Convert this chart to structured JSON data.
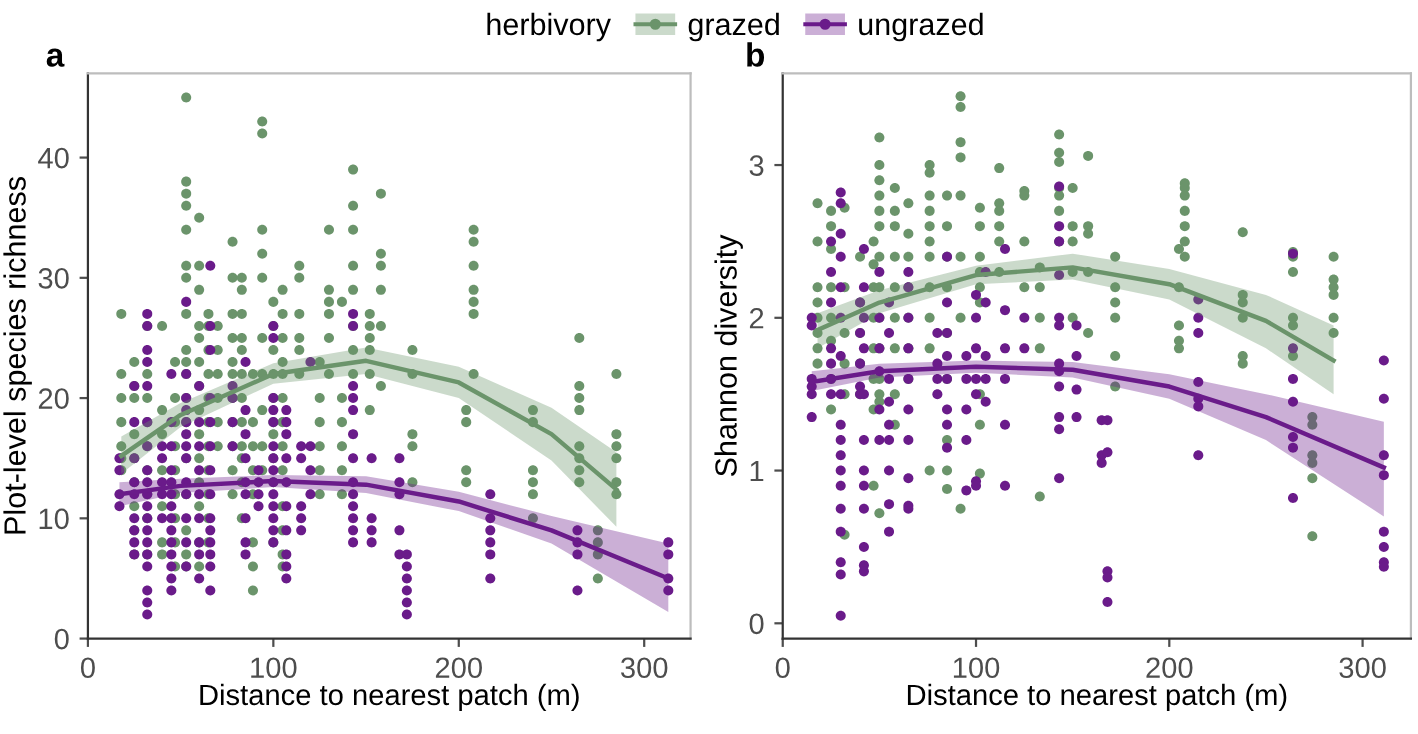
{
  "chart_data": [
    {
      "type": "scatter",
      "title": "a",
      "xlabel": "Distance to nearest patch (m)",
      "ylabel": "Plot-level species richness",
      "legend_title": "herbivory",
      "legend": "top",
      "grid": false,
      "xlim": [
        0,
        325
      ],
      "xticks": [
        0,
        100,
        200,
        300
      ],
      "ylim": [
        0,
        47
      ],
      "yticks": [
        0,
        10,
        20,
        30,
        40
      ],
      "series": [
        {
          "name": "grazed",
          "color": "#6b946b",
          "marker": "circle",
          "x": [
            18,
            18,
            18,
            18,
            18,
            18,
            18,
            25,
            25,
            25,
            25,
            25,
            25,
            25,
            25,
            25,
            32,
            32,
            32,
            32,
            32,
            32,
            32,
            32,
            32,
            40,
            40,
            40,
            40,
            40,
            40,
            40,
            47,
            47,
            47,
            47,
            47,
            47,
            47,
            47,
            47,
            53,
            53,
            53,
            53,
            53,
            53,
            53,
            53,
            53,
            53,
            53,
            53,
            53,
            53,
            53,
            53,
            53,
            53,
            60,
            60,
            60,
            60,
            60,
            60,
            60,
            60,
            60,
            60,
            60,
            60,
            60,
            60,
            65,
            65,
            65,
            65,
            65,
            65,
            65,
            65,
            65,
            65,
            65,
            70,
            70,
            70,
            70,
            70,
            70,
            78,
            78,
            78,
            78,
            78,
            78,
            78,
            78,
            78,
            78,
            78,
            83,
            83,
            83,
            83,
            83,
            83,
            83,
            83,
            83,
            83,
            83,
            83,
            89,
            89,
            89,
            89,
            89,
            89,
            89,
            89,
            94,
            94,
            94,
            94,
            94,
            94,
            94,
            94,
            94,
            94,
            100,
            100,
            100,
            100,
            100,
            100,
            100,
            100,
            100,
            100,
            105,
            105,
            105,
            105,
            105,
            105,
            105,
            105,
            105,
            105,
            105,
            105,
            105,
            114,
            114,
            114,
            114,
            114,
            114,
            125,
            125,
            125,
            125,
            125,
            125,
            130,
            130,
            130,
            130,
            130,
            130,
            137,
            137,
            137,
            137,
            137,
            137,
            143,
            143,
            143,
            143,
            143,
            143,
            143,
            143,
            152,
            152,
            152,
            152,
            152,
            152,
            158,
            158,
            158,
            158,
            158,
            158,
            175,
            175,
            175,
            175,
            175,
            204,
            204,
            204,
            204,
            208,
            208,
            208,
            208,
            208,
            208,
            208,
            240,
            240,
            240,
            240,
            240,
            240,
            265,
            265,
            265,
            265,
            265,
            265,
            265,
            265,
            275,
            275,
            275,
            275,
            285,
            285,
            285,
            285,
            285,
            285
          ],
          "values": [
            27,
            22,
            20,
            18,
            16,
            15,
            14,
            23,
            21,
            20,
            17,
            15,
            13,
            11,
            9,
            7,
            26,
            22,
            20,
            18,
            16,
            14,
            12,
            10,
            7,
            26,
            19,
            17,
            14,
            11,
            8,
            7,
            23,
            20,
            18,
            16,
            14,
            12,
            10,
            8,
            6,
            45,
            38,
            37,
            36,
            34,
            31,
            30,
            27,
            24,
            23,
            22,
            20,
            18,
            15,
            12,
            9,
            7,
            6,
            35,
            31,
            29,
            26,
            25,
            23,
            21,
            19,
            17,
            15,
            13,
            11,
            8,
            6,
            27,
            26,
            24,
            22,
            20,
            18,
            16,
            14,
            12,
            10,
            8,
            26,
            24,
            22,
            20,
            18,
            16,
            33,
            30,
            27,
            25,
            23,
            22,
            20,
            18,
            16,
            14,
            12,
            30,
            29,
            27,
            25,
            24,
            22,
            20,
            18,
            16,
            15,
            13,
            10,
            22,
            18,
            16,
            14,
            12,
            8,
            6,
            4,
            43,
            42,
            34,
            32,
            30,
            25,
            22,
            19,
            16,
            14,
            28,
            26,
            24,
            22,
            20,
            18,
            17,
            15,
            13,
            8,
            29,
            27,
            25,
            23,
            22,
            20,
            18,
            16,
            14,
            11,
            9,
            7,
            6,
            31,
            30,
            27,
            25,
            24,
            22,
            23,
            20,
            18,
            16,
            14,
            12,
            34,
            29,
            28,
            27,
            25,
            22,
            28,
            20,
            18,
            16,
            14,
            12,
            39,
            36,
            34,
            31,
            29,
            26,
            24,
            22,
            27,
            26,
            25,
            24,
            22,
            19,
            37,
            32,
            31,
            29,
            26,
            21,
            24,
            22,
            17,
            16,
            13,
            19,
            18,
            14,
            13,
            34,
            33,
            31,
            29,
            28,
            27,
            22,
            19,
            18,
            14,
            13,
            12,
            10,
            25,
            21,
            20,
            19,
            16,
            15,
            14,
            13,
            9,
            8,
            7,
            5,
            22,
            17,
            16,
            15,
            13,
            12
          ]
        },
        {
          "name": "ungrazed",
          "color": "#6a1b8a",
          "marker": "circle",
          "x": [
            17,
            17,
            17,
            17,
            25,
            25,
            25,
            25,
            25,
            25,
            25,
            25,
            25,
            32,
            32,
            32,
            32,
            32,
            32,
            32,
            32,
            32,
            32,
            32,
            32,
            32,
            32,
            32,
            32,
            32,
            32,
            32,
            40,
            40,
            40,
            40,
            40,
            45,
            45,
            45,
            45,
            45,
            45,
            45,
            45,
            45,
            45,
            45,
            45,
            45,
            45,
            53,
            53,
            53,
            53,
            53,
            53,
            53,
            53,
            53,
            53,
            53,
            53,
            53,
            60,
            60,
            60,
            60,
            60,
            60,
            60,
            60,
            60,
            66,
            66,
            66,
            66,
            66,
            66,
            66,
            66,
            66,
            66,
            66,
            66,
            66,
            66,
            78,
            78,
            78,
            78,
            85,
            85,
            85,
            85,
            85,
            85,
            85,
            85,
            85,
            92,
            92,
            92,
            92,
            100,
            100,
            100,
            100,
            100,
            100,
            100,
            100,
            100,
            100,
            100,
            100,
            100,
            100,
            107,
            107,
            107,
            107,
            107,
            107,
            107,
            107,
            107,
            107,
            115,
            115,
            115,
            115,
            115,
            120,
            120,
            120,
            120,
            143,
            143,
            143,
            143,
            143,
            143,
            143,
            143,
            143,
            143,
            143,
            143,
            143,
            153,
            153,
            153,
            153,
            168,
            168,
            168,
            168,
            168,
            172,
            172,
            172,
            172,
            172,
            172,
            217,
            217,
            217,
            217,
            217,
            217,
            264,
            264,
            264,
            264,
            313,
            313,
            313,
            313
          ],
          "values": [
            15,
            14,
            12,
            11,
            21,
            18,
            15,
            13,
            12,
            10,
            9,
            8,
            7,
            27,
            26,
            24,
            23,
            21,
            18,
            16,
            14,
            13,
            12,
            11,
            10,
            9,
            8,
            7,
            6,
            4,
            3,
            2,
            16,
            15,
            13,
            12,
            10,
            22,
            18,
            16,
            14,
            13,
            12,
            11,
            10,
            9,
            8,
            7,
            6,
            5,
            4,
            28,
            22,
            20,
            19,
            18,
            17,
            16,
            15,
            13,
            12,
            10,
            8,
            6,
            21,
            18,
            16,
            14,
            12,
            10,
            8,
            7,
            5,
            31,
            26,
            24,
            20,
            18,
            16,
            14,
            12,
            10,
            9,
            8,
            7,
            6,
            4,
            21,
            20,
            18,
            16,
            23,
            19,
            17,
            15,
            13,
            12,
            10,
            8,
            7,
            14,
            13,
            12,
            11,
            26,
            25,
            20,
            19,
            18,
            16,
            15,
            14,
            13,
            12,
            11,
            10,
            9,
            8,
            19,
            18,
            17,
            15,
            13,
            11,
            9,
            7,
            6,
            5,
            16,
            15,
            11,
            10,
            9,
            23,
            16,
            14,
            12,
            27,
            26,
            21,
            20,
            19,
            17,
            15,
            13,
            12,
            11,
            10,
            9,
            8,
            15,
            10,
            9,
            8,
            15,
            13,
            12,
            9,
            7,
            7,
            6,
            5,
            4,
            3,
            2,
            12,
            10,
            9,
            8,
            7,
            5,
            9,
            8,
            7,
            4,
            8,
            7,
            5,
            4
          ]
        },
        {
          "type": "line",
          "color": "#6b946b",
          "x": [
            18,
            50,
            100,
            150,
            200,
            250,
            285
          ],
          "values": [
            15.2,
            18.6,
            22,
            23.1,
            21.3,
            17,
            12.4
          ],
          "lower": [
            13.7,
            17.6,
            21.2,
            22,
            20,
            14.8,
            9.3
          ],
          "upper": [
            16.8,
            19.6,
            22.9,
            24.2,
            22.6,
            19.2,
            15.5
          ]
        },
        {
          "type": "line",
          "color": "#6a1b8a",
          "x": [
            17,
            50,
            100,
            150,
            200,
            250,
            313
          ],
          "values": [
            12,
            12.7,
            13.1,
            12.8,
            11.4,
            9,
            5
          ],
          "lower": [
            11,
            12.1,
            12.6,
            12.1,
            10.6,
            7.9,
            2.2
          ],
          "upper": [
            13,
            13.3,
            13.6,
            13.5,
            12.2,
            10.2,
            7.9
          ]
        }
      ]
    },
    {
      "type": "scatter",
      "title": "b",
      "xlabel": "Distance to nearest patch (m)",
      "ylabel": "Shannon diversity",
      "grid": false,
      "xlim": [
        0,
        325
      ],
      "xticks": [
        0,
        100,
        200,
        300
      ],
      "ylim": [
        -0.1,
        3.6
      ],
      "yticks": [
        0,
        1,
        2,
        3
      ],
      "series": [
        {
          "color": "#6b946b",
          "marker": "circle",
          "x": [
            18,
            18,
            18,
            18,
            18,
            18,
            18,
            18,
            25,
            25,
            25,
            25,
            25,
            25,
            25,
            25,
            32,
            32,
            32,
            32,
            32,
            32,
            40,
            40,
            40,
            40,
            40,
            47,
            47,
            47,
            47,
            47,
            47,
            47,
            47,
            50,
            50,
            50,
            50,
            50,
            50,
            50,
            50,
            50,
            50,
            50,
            50,
            50,
            50,
            58,
            58,
            58,
            58,
            58,
            58,
            58,
            58,
            58,
            65,
            65,
            65,
            65,
            65,
            65,
            65,
            76,
            76,
            76,
            76,
            76,
            76,
            76,
            76,
            76,
            76,
            76,
            85,
            85,
            85,
            85,
            85,
            85,
            85,
            85,
            85,
            92,
            92,
            92,
            92,
            92,
            92,
            92,
            92,
            102,
            102,
            102,
            102,
            102,
            102,
            102,
            102,
            102,
            112,
            112,
            112,
            112,
            112,
            112,
            125,
            125,
            125,
            125,
            133,
            133,
            133,
            133,
            133,
            143,
            143,
            143,
            143,
            143,
            143,
            143,
            150,
            150,
            150,
            150,
            150,
            158,
            158,
            158,
            158,
            158,
            172,
            172,
            172,
            172,
            172,
            172,
            205,
            205,
            205,
            205,
            205,
            208,
            208,
            208,
            208,
            208,
            208,
            208,
            238,
            238,
            238,
            238,
            238,
            238,
            264,
            264,
            264,
            264,
            264,
            264,
            274,
            274,
            274,
            274,
            274,
            274,
            285,
            285,
            285,
            285,
            285,
            285
          ],
          "values": [
            2.75,
            2.5,
            2.2,
            2.1,
            2.0,
            1.9,
            1.8,
            1.7,
            2.7,
            2.6,
            2.45,
            2.2,
            2.0,
            1.85,
            1.6,
            1.4,
            2.72,
            2.2,
            1.9,
            1.7,
            1.5,
            0.58,
            2.4,
            2.1,
            1.9,
            1.7,
            1.5,
            2.5,
            2.35,
            2.2,
            2.0,
            1.8,
            1.6,
            1.4,
            0.9,
            3.18,
            3.0,
            2.9,
            2.8,
            2.7,
            2.6,
            2.4,
            2.2,
            2.0,
            1.8,
            1.6,
            1.5,
            1.45,
            0.72,
            2.85,
            2.7,
            2.6,
            2.4,
            2.2,
            2.0,
            1.8,
            1.5,
            1.3,
            2.75,
            2.55,
            2.4,
            2.2,
            2.0,
            1.8,
            1.6,
            3.0,
            2.95,
            2.8,
            2.7,
            2.6,
            2.5,
            2.4,
            2.2,
            2.0,
            1.8,
            1.0,
            2.8,
            2.6,
            2.4,
            2.2,
            1.9,
            1.6,
            1.2,
            1.0,
            0.88,
            3.45,
            3.38,
            3.15,
            3.05,
            2.8,
            2.4,
            2.0,
            0.75,
            2.72,
            2.6,
            2.4,
            2.3,
            2.2,
            2.1,
            1.5,
            1.3,
            0.98,
            2.98,
            2.75,
            2.7,
            2.6,
            2.5,
            2.3,
            2.83,
            2.8,
            2.5,
            2.2,
            2.33,
            2.2,
            2.0,
            1.8,
            0.83,
            3.2,
            3.08,
            3.02,
            2.85,
            2.8,
            2.7,
            2.5,
            2.85,
            2.6,
            2.5,
            2.3,
            2.0,
            3.06,
            2.6,
            2.55,
            2.3,
            1.9,
            2.4,
            2.2,
            2.1,
            2.0,
            1.75,
            1.55,
            2.45,
            2.2,
            1.95,
            1.85,
            1.8,
            2.88,
            2.85,
            2.8,
            2.7,
            2.6,
            2.5,
            2.4,
            2.56,
            2.15,
            2.1,
            2.0,
            1.75,
            1.7,
            2.43,
            2.4,
            2.3,
            2.0,
            1.95,
            1.75,
            1.35,
            1.3,
            1.1,
            1.05,
            0.95,
            0.57,
            2.4,
            2.25,
            2.2,
            2.15,
            2.0,
            1.9
          ]
        },
        {
          "color": "#6a1b8a",
          "marker": "circle",
          "x": [
            15,
            15,
            15,
            15,
            15,
            15,
            25,
            25,
            25,
            25,
            25,
            25,
            25,
            30,
            30,
            30,
            30,
            30,
            30,
            30,
            30,
            30,
            30,
            30,
            30,
            30,
            30,
            30,
            30,
            30,
            30,
            40,
            40,
            40,
            40,
            40,
            42,
            42,
            42,
            42,
            42,
            42,
            42,
            42,
            42,
            42,
            42,
            42,
            50,
            50,
            50,
            50,
            50,
            50,
            55,
            55,
            55,
            55,
            55,
            55,
            55,
            55,
            55,
            65,
            65,
            65,
            65,
            65,
            65,
            65,
            65,
            65,
            65,
            80,
            80,
            80,
            80,
            85,
            85,
            85,
            85,
            85,
            85,
            85,
            85,
            95,
            95,
            95,
            95,
            95,
            100,
            100,
            100,
            100,
            100,
            100,
            100,
            105,
            105,
            105,
            105,
            105,
            115,
            115,
            115,
            115,
            115,
            115,
            125,
            125,
            143,
            143,
            143,
            143,
            143,
            143,
            143,
            143,
            143,
            143,
            143,
            143,
            152,
            152,
            152,
            152,
            165,
            165,
            165,
            168,
            168,
            168,
            168,
            168,
            215,
            215,
            215,
            215,
            215,
            215,
            215,
            264,
            264,
            264,
            264,
            264,
            264,
            264,
            311,
            311,
            311,
            311,
            311,
            311,
            311,
            311
          ],
          "values": [
            2.0,
            1.95,
            1.6,
            1.55,
            1.5,
            1.35,
            2.5,
            2.3,
            2.1,
            1.8,
            1.7,
            1.6,
            1.5,
            2.82,
            2.75,
            2.55,
            2.4,
            2.2,
            2.0,
            1.75,
            1.5,
            1.3,
            1.2,
            1.1,
            1.0,
            0.9,
            0.75,
            0.6,
            0.4,
            0.32,
            0.05,
            2.1,
            1.9,
            1.7,
            1.55,
            1.5,
            2.45,
            2.2,
            2.0,
            1.8,
            1.5,
            1.2,
            1.0,
            0.9,
            0.75,
            0.5,
            0.38,
            0.34,
            2.3,
            2.0,
            1.8,
            1.65,
            1.4,
            1.2,
            2.1,
            1.9,
            1.6,
            1.45,
            1.3,
            1.2,
            1.0,
            0.78,
            0.6,
            2.3,
            2.2,
            2.0,
            1.8,
            1.6,
            1.4,
            1.2,
            0.95,
            0.77,
            0.75,
            1.9,
            1.7,
            1.6,
            1.5,
            2.4,
            2.1,
            1.9,
            1.75,
            1.6,
            1.4,
            1.3,
            1.15,
            1.75,
            1.6,
            1.4,
            1.2,
            0.87,
            2.15,
            2.0,
            1.8,
            1.6,
            1.5,
            0.93,
            0.9,
            2.3,
            2.1,
            1.75,
            1.6,
            1.45,
            2.45,
            2.05,
            1.8,
            1.6,
            1.3,
            0.9,
            2.0,
            1.8,
            2.86,
            2.6,
            2.5,
            2.28,
            2.0,
            1.95,
            1.7,
            1.65,
            1.55,
            1.35,
            1.27,
            0.95,
            1.95,
            1.75,
            1.53,
            1.35,
            1.33,
            1.1,
            1.05,
            1.33,
            1.12,
            0.34,
            0.3,
            0.14,
            2.12,
            2.0,
            1.9,
            1.58,
            1.47,
            1.42,
            1.1,
            2.42,
            1.8,
            1.6,
            1.45,
            1.22,
            1.15,
            0.82,
            1.72,
            1.47,
            1.1,
            0.97,
            0.6,
            0.5,
            0.4,
            0.37
          ]
        },
        {
          "type": "line",
          "color": "#6b946b",
          "x": [
            18,
            50,
            100,
            150,
            200,
            250,
            285
          ],
          "values": [
            1.92,
            2.1,
            2.28,
            2.33,
            2.22,
            1.98,
            1.72
          ],
          "lower": [
            1.8,
            2.03,
            2.22,
            2.25,
            2.12,
            1.8,
            1.5
          ],
          "upper": [
            2.03,
            2.18,
            2.34,
            2.42,
            2.32,
            2.15,
            1.95
          ]
        },
        {
          "type": "line",
          "color": "#6a1b8a",
          "x": [
            15,
            50,
            100,
            150,
            200,
            250,
            311
          ],
          "values": [
            1.58,
            1.65,
            1.68,
            1.66,
            1.55,
            1.35,
            1.02
          ],
          "lower": [
            1.52,
            1.61,
            1.64,
            1.61,
            1.47,
            1.2,
            0.7
          ],
          "upper": [
            1.65,
            1.7,
            1.72,
            1.71,
            1.63,
            1.5,
            1.32
          ]
        }
      ]
    }
  ]
}
